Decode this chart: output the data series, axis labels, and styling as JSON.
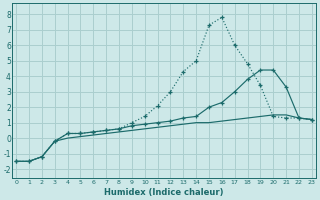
{
  "xlabel": "Humidex (Indice chaleur)",
  "background_color": "#cde8e8",
  "grid_color": "#aacece",
  "line_color": "#1c6b6b",
  "x_ticks": [
    0,
    1,
    2,
    3,
    4,
    5,
    6,
    7,
    8,
    9,
    10,
    11,
    12,
    13,
    14,
    15,
    16,
    17,
    18,
    19,
    20,
    21,
    22,
    23
  ],
  "y_ticks": [
    -2,
    -1,
    0,
    1,
    2,
    3,
    4,
    5,
    6,
    7,
    8
  ],
  "xlim": [
    -0.3,
    23.3
  ],
  "ylim": [
    -2.6,
    8.7
  ],
  "series_dotted_x": [
    0,
    1,
    2,
    3,
    4,
    5,
    6,
    7,
    8,
    9,
    10,
    11,
    12,
    13,
    14,
    15,
    16,
    17,
    18,
    19,
    20,
    21,
    22,
    23
  ],
  "series_dotted_y": [
    -1.5,
    -1.5,
    -1.2,
    -0.2,
    0.3,
    0.3,
    0.4,
    0.5,
    0.6,
    1.0,
    1.4,
    2.1,
    3.0,
    4.3,
    5.0,
    7.3,
    7.8,
    6.0,
    4.8,
    3.4,
    1.4,
    1.3,
    1.3,
    1.2
  ],
  "series_mid_x": [
    0,
    1,
    2,
    3,
    4,
    5,
    6,
    7,
    8,
    9,
    10,
    11,
    12,
    13,
    14,
    15,
    16,
    17,
    18,
    19,
    20,
    21,
    22,
    23
  ],
  "series_mid_y": [
    -1.5,
    -1.5,
    -1.2,
    -0.2,
    0.3,
    0.3,
    0.4,
    0.5,
    0.6,
    0.8,
    0.9,
    1.0,
    1.1,
    1.3,
    1.4,
    2.0,
    2.3,
    3.0,
    3.8,
    4.4,
    4.4,
    3.3,
    1.3,
    1.2
  ],
  "series_flat_x": [
    0,
    1,
    2,
    3,
    4,
    5,
    6,
    7,
    8,
    9,
    10,
    11,
    12,
    13,
    14,
    15,
    16,
    17,
    18,
    19,
    20,
    21,
    22,
    23
  ],
  "series_flat_y": [
    -1.5,
    -1.5,
    -1.2,
    -0.2,
    0.0,
    0.1,
    0.2,
    0.3,
    0.4,
    0.5,
    0.6,
    0.7,
    0.8,
    0.9,
    1.0,
    1.0,
    1.1,
    1.2,
    1.3,
    1.4,
    1.5,
    1.5,
    1.3,
    1.2
  ]
}
